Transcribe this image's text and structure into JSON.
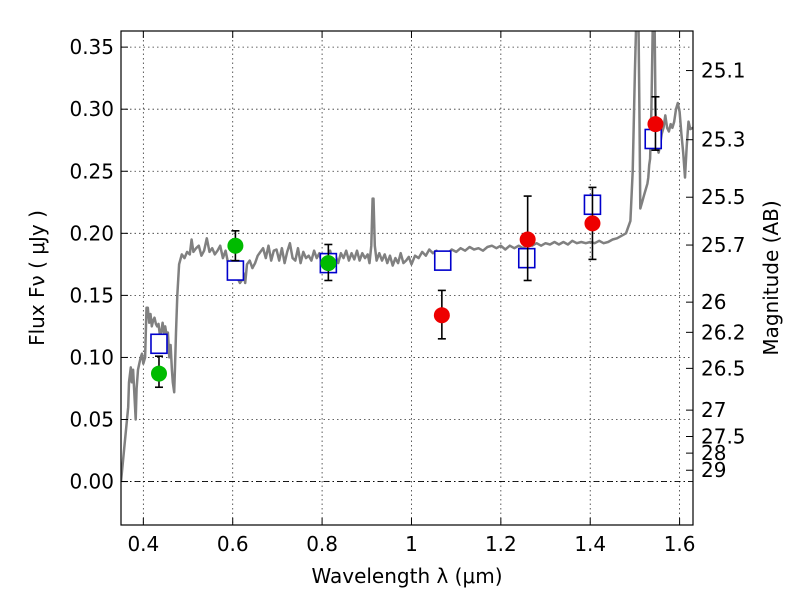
{
  "chart_data": {
    "type": "scatter",
    "title": "",
    "xlabel": "Wavelength  λ (μm)",
    "ylabel": "Flux  Fν  ( μJy )",
    "y2label": "Magnitude (AB)",
    "xlim": [
      0.35,
      1.63
    ],
    "ylim": [
      -0.035,
      0.363
    ],
    "grid": true,
    "legend": "none",
    "x_ticks": [
      {
        "v": 0.4,
        "label": "0.4"
      },
      {
        "v": 0.6,
        "label": "0.6"
      },
      {
        "v": 0.8,
        "label": "0.8"
      },
      {
        "v": 1.0,
        "label": "1"
      },
      {
        "v": 1.2,
        "label": "1.2"
      },
      {
        "v": 1.4,
        "label": "1.4"
      },
      {
        "v": 1.6,
        "label": "1.6"
      }
    ],
    "y_ticks": [
      {
        "v": 0.0,
        "label": "0.00"
      },
      {
        "v": 0.05,
        "label": "0.05"
      },
      {
        "v": 0.1,
        "label": "0.10"
      },
      {
        "v": 0.15,
        "label": "0.15"
      },
      {
        "v": 0.2,
        "label": "0.20"
      },
      {
        "v": 0.25,
        "label": "0.25"
      },
      {
        "v": 0.3,
        "label": "0.30"
      },
      {
        "v": 0.35,
        "label": "0.35"
      }
    ],
    "mag_ticks": [
      {
        "v": 25.1,
        "label": "25.1"
      },
      {
        "v": 25.3,
        "label": "25.3"
      },
      {
        "v": 25.5,
        "label": "25.5"
      },
      {
        "v": 25.7,
        "label": "25.7"
      },
      {
        "v": 26.0,
        "label": "26"
      },
      {
        "v": 26.2,
        "label": "26.2"
      },
      {
        "v": 26.5,
        "label": "26.5"
      },
      {
        "v": 27.0,
        "label": "27"
      },
      {
        "v": 27.5,
        "label": "27.5"
      },
      {
        "v": 28.0,
        "label": "28"
      },
      {
        "v": 29.0,
        "label": "29"
      }
    ],
    "colors": {
      "model": "#808080",
      "green": "#00bb00",
      "red": "#ee0000",
      "box": "#0000cc",
      "error": "#000000"
    },
    "series": [
      {
        "kind": "line",
        "points": [
          [
            0.35,
            0.0
          ],
          [
            0.358,
            0.03
          ],
          [
            0.362,
            0.045
          ],
          [
            0.366,
            0.06
          ],
          [
            0.368,
            0.08
          ],
          [
            0.372,
            0.092
          ],
          [
            0.374,
            0.08
          ],
          [
            0.377,
            0.09
          ],
          [
            0.38,
            0.07
          ],
          [
            0.383,
            0.05
          ],
          [
            0.385,
            0.075
          ],
          [
            0.388,
            0.09
          ],
          [
            0.391,
            0.095
          ],
          [
            0.394,
            0.1
          ],
          [
            0.397,
            0.103
          ],
          [
            0.4,
            0.095
          ],
          [
            0.404,
            0.1
          ],
          [
            0.407,
            0.14
          ],
          [
            0.41,
            0.14
          ],
          [
            0.413,
            0.128
          ],
          [
            0.416,
            0.135
          ],
          [
            0.419,
            0.125
          ],
          [
            0.422,
            0.13
          ],
          [
            0.425,
            0.132
          ],
          [
            0.428,
            0.127
          ],
          [
            0.431,
            0.125
          ],
          [
            0.434,
            0.127
          ],
          [
            0.437,
            0.118
          ],
          [
            0.44,
            0.12
          ],
          [
            0.443,
            0.128
          ],
          [
            0.446,
            0.12
          ],
          [
            0.449,
            0.125
          ],
          [
            0.452,
            0.118
          ],
          [
            0.455,
            0.12
          ],
          [
            0.458,
            0.1
          ],
          [
            0.461,
            0.11
          ],
          [
            0.464,
            0.09
          ],
          [
            0.466,
            0.08
          ],
          [
            0.469,
            0.072
          ],
          [
            0.471,
            0.095
          ],
          [
            0.473,
            0.12
          ],
          [
            0.476,
            0.15
          ],
          [
            0.48,
            0.175
          ],
          [
            0.486,
            0.183
          ],
          [
            0.492,
            0.18
          ],
          [
            0.498,
            0.185
          ],
          [
            0.504,
            0.183
          ],
          [
            0.508,
            0.195
          ],
          [
            0.512,
            0.185
          ],
          [
            0.518,
            0.188
          ],
          [
            0.524,
            0.19
          ],
          [
            0.53,
            0.182
          ],
          [
            0.536,
            0.186
          ],
          [
            0.542,
            0.196
          ],
          [
            0.548,
            0.185
          ],
          [
            0.554,
            0.188
          ],
          [
            0.56,
            0.183
          ],
          [
            0.566,
            0.186
          ],
          [
            0.572,
            0.19
          ],
          [
            0.578,
            0.18
          ],
          [
            0.584,
            0.186
          ],
          [
            0.59,
            0.175
          ],
          [
            0.596,
            0.178
          ],
          [
            0.602,
            0.17
          ],
          [
            0.608,
            0.172
          ],
          [
            0.612,
            0.163
          ],
          [
            0.616,
            0.16
          ],
          [
            0.62,
            0.162
          ],
          [
            0.624,
            0.168
          ],
          [
            0.628,
            0.16
          ],
          [
            0.632,
            0.175
          ],
          [
            0.638,
            0.178
          ],
          [
            0.644,
            0.172
          ],
          [
            0.65,
            0.176
          ],
          [
            0.656,
            0.182
          ],
          [
            0.662,
            0.185
          ],
          [
            0.668,
            0.188
          ],
          [
            0.674,
            0.18
          ],
          [
            0.68,
            0.19
          ],
          [
            0.686,
            0.178
          ],
          [
            0.692,
            0.186
          ],
          [
            0.698,
            0.187
          ],
          [
            0.704,
            0.178
          ],
          [
            0.71,
            0.188
          ],
          [
            0.716,
            0.176
          ],
          [
            0.722,
            0.185
          ],
          [
            0.728,
            0.192
          ],
          [
            0.734,
            0.18
          ],
          [
            0.74,
            0.178
          ],
          [
            0.746,
            0.188
          ],
          [
            0.752,
            0.176
          ],
          [
            0.758,
            0.185
          ],
          [
            0.764,
            0.18
          ],
          [
            0.77,
            0.182
          ],
          [
            0.776,
            0.178
          ],
          [
            0.782,
            0.186
          ],
          [
            0.788,
            0.18
          ],
          [
            0.794,
            0.184
          ],
          [
            0.8,
            0.174
          ],
          [
            0.806,
            0.18
          ],
          [
            0.812,
            0.176
          ],
          [
            0.818,
            0.186
          ],
          [
            0.824,
            0.178
          ],
          [
            0.83,
            0.182
          ],
          [
            0.836,
            0.176
          ],
          [
            0.842,
            0.184
          ],
          [
            0.848,
            0.18
          ],
          [
            0.854,
            0.186
          ],
          [
            0.86,
            0.178
          ],
          [
            0.866,
            0.184
          ],
          [
            0.872,
            0.179
          ],
          [
            0.878,
            0.186
          ],
          [
            0.884,
            0.178
          ],
          [
            0.89,
            0.184
          ],
          [
            0.896,
            0.18
          ],
          [
            0.902,
            0.183
          ],
          [
            0.906,
            0.176
          ],
          [
            0.91,
            0.19
          ],
          [
            0.913,
            0.228
          ],
          [
            0.915,
            0.228
          ],
          [
            0.918,
            0.19
          ],
          [
            0.922,
            0.178
          ],
          [
            0.928,
            0.184
          ],
          [
            0.934,
            0.178
          ],
          [
            0.94,
            0.183
          ],
          [
            0.946,
            0.176
          ],
          [
            0.952,
            0.182
          ],
          [
            0.958,
            0.174
          ],
          [
            0.964,
            0.18
          ],
          [
            0.97,
            0.176
          ],
          [
            0.976,
            0.184
          ],
          [
            0.982,
            0.176
          ],
          [
            0.988,
            0.178
          ],
          [
            0.994,
            0.181
          ],
          [
            1.0,
            0.175
          ],
          [
            1.008,
            0.182
          ],
          [
            1.016,
            0.18
          ],
          [
            1.024,
            0.185
          ],
          [
            1.032,
            0.182
          ],
          [
            1.04,
            0.187
          ],
          [
            1.048,
            0.184
          ],
          [
            1.056,
            0.186
          ],
          [
            1.064,
            0.182
          ],
          [
            1.072,
            0.185
          ],
          [
            1.08,
            0.183
          ],
          [
            1.09,
            0.187
          ],
          [
            1.1,
            0.185
          ],
          [
            1.11,
            0.188
          ],
          [
            1.12,
            0.186
          ],
          [
            1.13,
            0.189
          ],
          [
            1.14,
            0.187
          ],
          [
            1.15,
            0.188
          ],
          [
            1.16,
            0.186
          ],
          [
            1.17,
            0.189
          ],
          [
            1.18,
            0.19
          ],
          [
            1.19,
            0.188
          ],
          [
            1.2,
            0.19
          ],
          [
            1.21,
            0.187
          ],
          [
            1.22,
            0.19
          ],
          [
            1.23,
            0.188
          ],
          [
            1.24,
            0.19
          ],
          [
            1.25,
            0.188
          ],
          [
            1.26,
            0.191
          ],
          [
            1.27,
            0.19
          ],
          [
            1.28,
            0.192
          ],
          [
            1.29,
            0.19
          ],
          [
            1.3,
            0.192
          ],
          [
            1.31,
            0.191
          ],
          [
            1.32,
            0.193
          ],
          [
            1.33,
            0.191
          ],
          [
            1.34,
            0.193
          ],
          [
            1.35,
            0.191
          ],
          [
            1.36,
            0.194
          ],
          [
            1.37,
            0.192
          ],
          [
            1.38,
            0.193
          ],
          [
            1.39,
            0.192
          ],
          [
            1.4,
            0.193
          ],
          [
            1.41,
            0.192
          ],
          [
            1.42,
            0.194
          ],
          [
            1.43,
            0.192
          ],
          [
            1.44,
            0.193
          ],
          [
            1.45,
            0.195
          ],
          [
            1.46,
            0.196
          ],
          [
            1.47,
            0.198
          ],
          [
            1.48,
            0.2
          ],
          [
            1.49,
            0.21
          ],
          [
            1.495,
            0.25
          ],
          [
            1.5,
            0.33
          ],
          [
            1.503,
            0.37
          ],
          [
            1.508,
            0.37
          ],
          [
            1.51,
            0.3
          ],
          [
            1.512,
            0.22
          ],
          [
            1.516,
            0.225
          ],
          [
            1.52,
            0.23
          ],
          [
            1.524,
            0.235
          ],
          [
            1.528,
            0.24
          ],
          [
            1.53,
            0.245
          ],
          [
            1.532,
            0.255
          ],
          [
            1.534,
            0.26
          ],
          [
            1.537,
            0.3
          ],
          [
            1.54,
            0.37
          ],
          [
            1.544,
            0.37
          ],
          [
            1.546,
            0.3
          ],
          [
            1.55,
            0.27
          ],
          [
            1.553,
            0.265
          ],
          [
            1.556,
            0.27
          ],
          [
            1.56,
            0.28
          ],
          [
            1.564,
            0.285
          ],
          [
            1.568,
            0.295
          ],
          [
            1.572,
            0.285
          ],
          [
            1.576,
            0.282
          ],
          [
            1.58,
            0.288
          ],
          [
            1.584,
            0.285
          ],
          [
            1.588,
            0.29
          ],
          [
            1.592,
            0.3
          ],
          [
            1.596,
            0.305
          ],
          [
            1.6,
            0.298
          ],
          [
            1.604,
            0.28
          ],
          [
            1.608,
            0.265
          ],
          [
            1.612,
            0.245
          ],
          [
            1.616,
            0.27
          ],
          [
            1.62,
            0.29
          ],
          [
            1.624,
            0.284
          ],
          [
            1.63,
            0.285
          ]
        ]
      },
      {
        "kind": "box",
        "points": [
          [
            0.435,
            0.111
          ],
          [
            0.606,
            0.17
          ],
          [
            0.814,
            0.176
          ],
          [
            1.07,
            0.178
          ],
          [
            1.258,
            0.18
          ],
          [
            1.405,
            0.223
          ],
          [
            1.541,
            0.276
          ]
        ]
      },
      {
        "kind": "green",
        "points": [
          [
            0.435,
            0.087,
            0.076,
            0.101
          ],
          [
            0.606,
            0.19,
            0.178,
            0.202
          ],
          [
            0.814,
            0.176,
            0.162,
            0.191
          ]
        ]
      },
      {
        "kind": "red",
        "points": [
          [
            1.068,
            0.134,
            0.115,
            0.154
          ],
          [
            1.26,
            0.195,
            0.162,
            0.23
          ],
          [
            1.405,
            0.208,
            0.179,
            0.237
          ],
          [
            1.546,
            0.288,
            0.267,
            0.31
          ]
        ]
      }
    ]
  }
}
